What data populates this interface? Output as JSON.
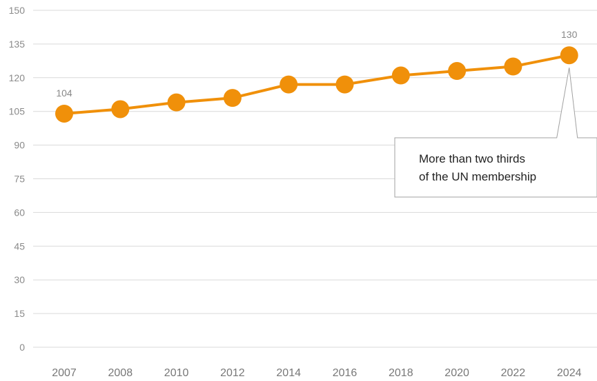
{
  "chart_data": {
    "type": "line",
    "title": "",
    "xlabel": "",
    "ylabel": "",
    "categories": [
      "2007",
      "2008",
      "2010",
      "2012",
      "2014",
      "2016",
      "2018",
      "2020",
      "2022",
      "2024"
    ],
    "values": [
      104,
      106,
      109,
      111,
      117,
      117,
      121,
      123,
      125,
      130
    ],
    "ylim": [
      0,
      150
    ],
    "yticks": [
      0,
      15,
      30,
      45,
      60,
      75,
      90,
      105,
      120,
      135,
      150
    ],
    "grid": true,
    "legend": "none",
    "data_labels": [
      {
        "category": "2007",
        "text": "104"
      },
      {
        "category": "2024",
        "text": "130"
      }
    ],
    "annotation": {
      "category": "2024",
      "lines": [
        "More than two thirds",
        "of the UN membership"
      ]
    },
    "colors": {
      "series": "#f0900a",
      "grid": "#d9d9d9",
      "callout_border": "#a0a0a0"
    }
  }
}
